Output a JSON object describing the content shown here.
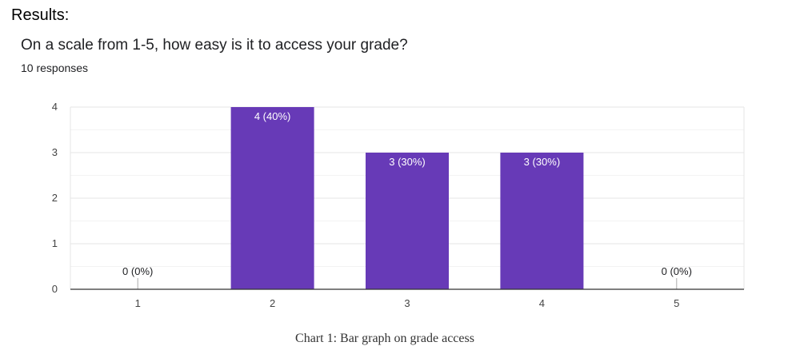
{
  "page": {
    "heading": "Results:",
    "caption": "Chart 1: Bar graph on grade access"
  },
  "form": {
    "question": "On a scale from 1-5, how easy is it to access your grade?",
    "responses": "10 responses"
  },
  "colors": {
    "bar": "#673ab7",
    "bar_label_inside": "#ffffff",
    "bar_label_outside": "#202124",
    "grid_major": "#e6e6e6",
    "grid_minor": "#f3f3f3",
    "axis": "#333333",
    "tick_text": "#444444"
  },
  "chart_data": {
    "type": "bar",
    "categories": [
      "1",
      "2",
      "3",
      "4",
      "5"
    ],
    "values": [
      0,
      4,
      3,
      3,
      0
    ],
    "data_labels": [
      "0 (0%)",
      "4 (40%)",
      "3 (30%)",
      "3 (30%)",
      "0 (0%)"
    ],
    "yticks": [
      "0",
      "1",
      "2",
      "3",
      "4"
    ],
    "ylim": [
      0,
      4
    ],
    "grid": true
  }
}
